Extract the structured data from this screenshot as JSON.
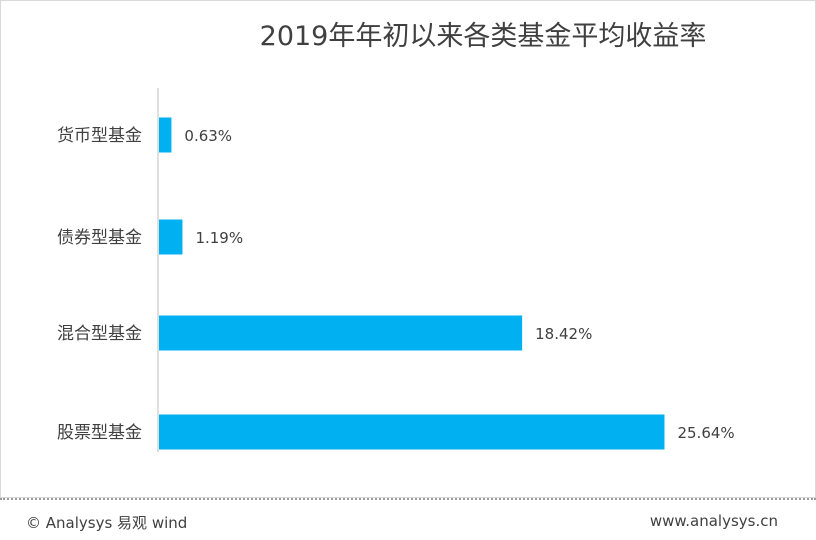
{
  "chart_data": {
    "type": "bar",
    "orientation": "horizontal",
    "title": "2019年年初以来各类基金平均收益率",
    "categories": [
      "货币型基金",
      "债券型基金",
      "混合型基金",
      "股票型基金"
    ],
    "values": [
      0.63,
      1.19,
      18.42,
      25.64
    ],
    "value_labels": [
      "0.63%",
      "1.19%",
      "18.42%",
      "25.64%"
    ],
    "bar_color": "#00b0f0",
    "xlim": [
      0,
      28
    ],
    "grid": false,
    "legend": "none"
  },
  "footer": {
    "source": "© Analysys 易观 wind",
    "website": "www.analysys.cn"
  }
}
